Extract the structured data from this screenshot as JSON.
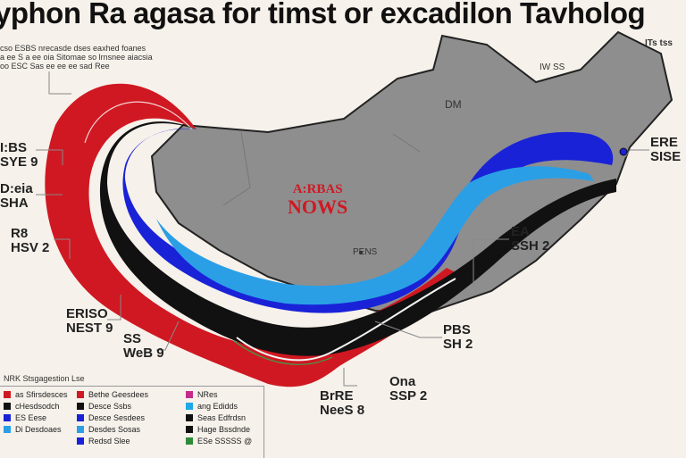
{
  "title": "yphon Ra agasa for timst or excadilon Tavholog",
  "subtitle_lines": [
    "cso ESBS nrecasde dses eaxhed foanes",
    "a ee S a ee oia Sitomae so lrnsnee aiacsia",
    "oo ESC Sas ee ee ee sad Ree"
  ],
  "center_label": {
    "line1": "A:RBAS",
    "line2": "NOWS"
  },
  "regions": {
    "north_east": "ITs tss",
    "north_east_2": "IW SS",
    "inland": "DM",
    "south_coast": "PENS"
  },
  "callouts": [
    {
      "id": "left-1",
      "line1": "I:BS",
      "line2": "SYE 9"
    },
    {
      "id": "left-2",
      "line1": "D:eia",
      "line2": "SHA"
    },
    {
      "id": "left-3",
      "line1": "R8",
      "line2": "HSV 2"
    },
    {
      "id": "left-4",
      "line1": "ERISO",
      "line2": "NEST 9"
    },
    {
      "id": "left-5",
      "line1": "SS",
      "line2": "WeB 9"
    },
    {
      "id": "right-1",
      "line1": "ERE",
      "line2": "SISE"
    },
    {
      "id": "right-2",
      "line1": "EA",
      "line2": "SSH 2"
    },
    {
      "id": "right-3",
      "line1": "PBS",
      "line2": "SH 2"
    },
    {
      "id": "bottom-1",
      "line1": "Ona",
      "line2": "SSP 2"
    },
    {
      "id": "bottom-2",
      "line1": "BrRE",
      "line2": "NeeS 8"
    }
  ],
  "legend": {
    "title": "NRK Stsgagestion Lse",
    "items": [
      {
        "label": "as Sfirsdesces",
        "color": "#d01822"
      },
      {
        "label": "cHesdsodch",
        "color": "#111111"
      },
      {
        "label": "ES Eese",
        "color": "#1a22d8"
      },
      {
        "label": "Di Desdoaes",
        "color": "#2a9fe6"
      },
      {
        "label": "Bethe Geesdees",
        "color": "#d01822"
      },
      {
        "label": "Desce Ssbs",
        "color": "#111111"
      },
      {
        "label": "Desce Sesdees",
        "color": "#1a22d8"
      },
      {
        "label": "Desdes Sosas",
        "color": "#2a9fe6"
      },
      {
        "label": "Redsd Slee",
        "color": "#1a22d8"
      },
      {
        "label": "NRes",
        "color": "#c52a8a"
      },
      {
        "label": "ang Edidds",
        "color": "#1ea8e6"
      },
      {
        "label": "Seas Edfrdsn",
        "color": "#111111"
      },
      {
        "label": "Hage Bssdnde",
        "color": "#111111"
      },
      {
        "label": "ESe SSSSS @",
        "color": "#2f8a3a"
      }
    ]
  }
}
